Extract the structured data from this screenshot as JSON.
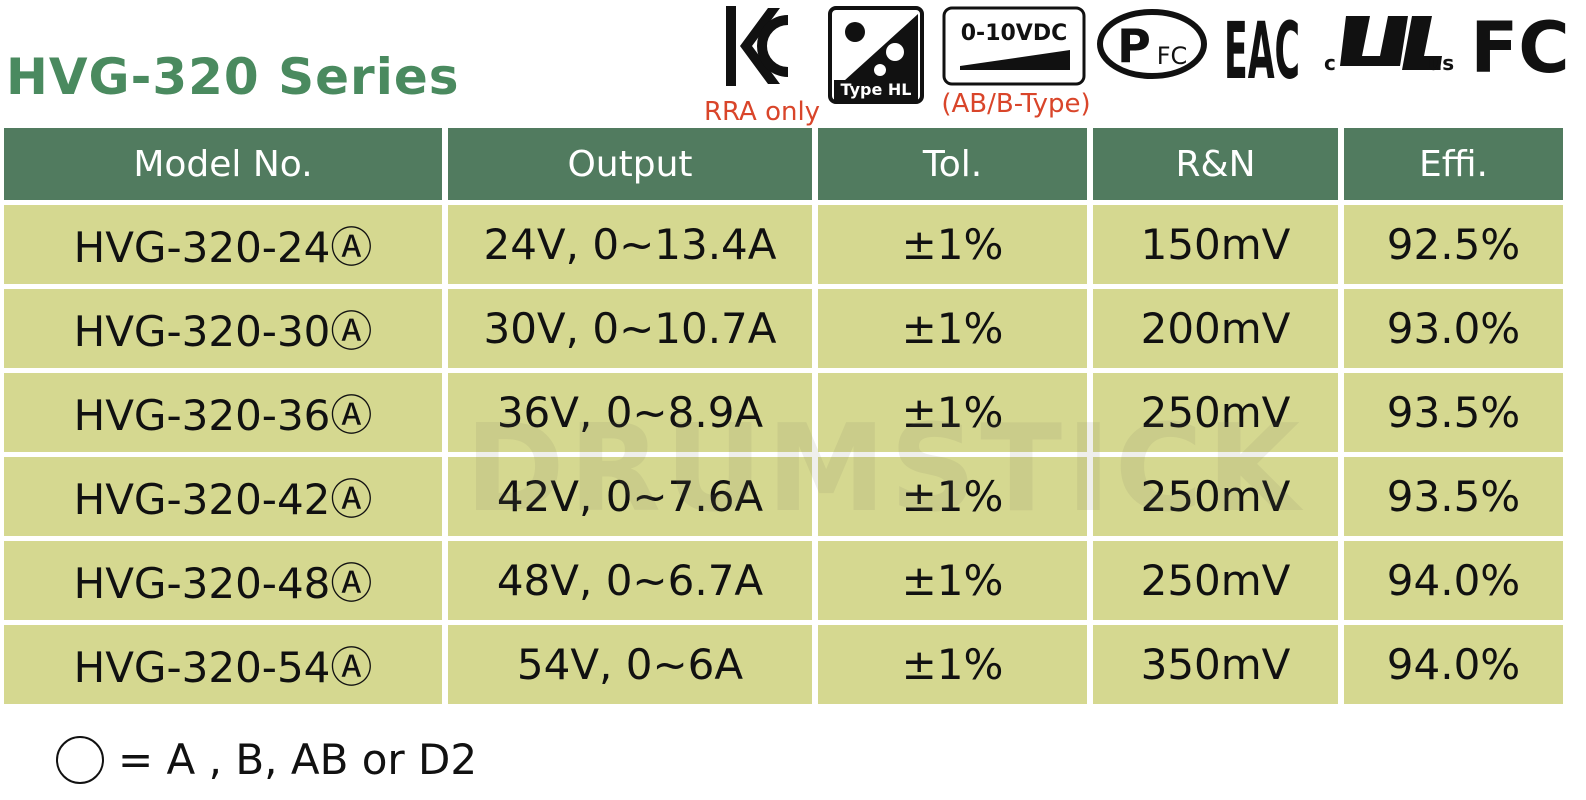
{
  "header": {
    "title": "HVG-320 Series",
    "kc_note": "RRA only",
    "type_hl": "Type HL",
    "dimming": "0-10VDC",
    "dimming_note": "(AB/B-Type)",
    "pfc_p": "P",
    "pfc_fc": "FC",
    "eac": "EAC",
    "ul_c": "c",
    "ul_us": "us",
    "fcc": "FC"
  },
  "watermark": "DRUMSTICK",
  "table": {
    "columns": [
      "Model No.",
      "Output",
      "Tol.",
      "R&N",
      "Effi."
    ],
    "rows": [
      [
        "HVG-320-24Ⓐ",
        "24V, 0~13.4A",
        "±1%",
        "150mV",
        "92.5%"
      ],
      [
        "HVG-320-30Ⓐ",
        "30V, 0~10.7A",
        "±1%",
        "200mV",
        "93.0%"
      ],
      [
        "HVG-320-36Ⓐ",
        "36V, 0~8.9A",
        "±1%",
        "250mV",
        "93.5%"
      ],
      [
        "HVG-320-42Ⓐ",
        "42V, 0~7.6A",
        "±1%",
        "250mV",
        "93.5%"
      ],
      [
        "HVG-320-48Ⓐ",
        "48V, 0~6.7A",
        "±1%",
        "250mV",
        "94.0%"
      ],
      [
        "HVG-320-54Ⓐ",
        "54V, 0~6A",
        "±1%",
        "350mV",
        "94.0%"
      ]
    ]
  },
  "footnote": "= A , B, AB or D2"
}
